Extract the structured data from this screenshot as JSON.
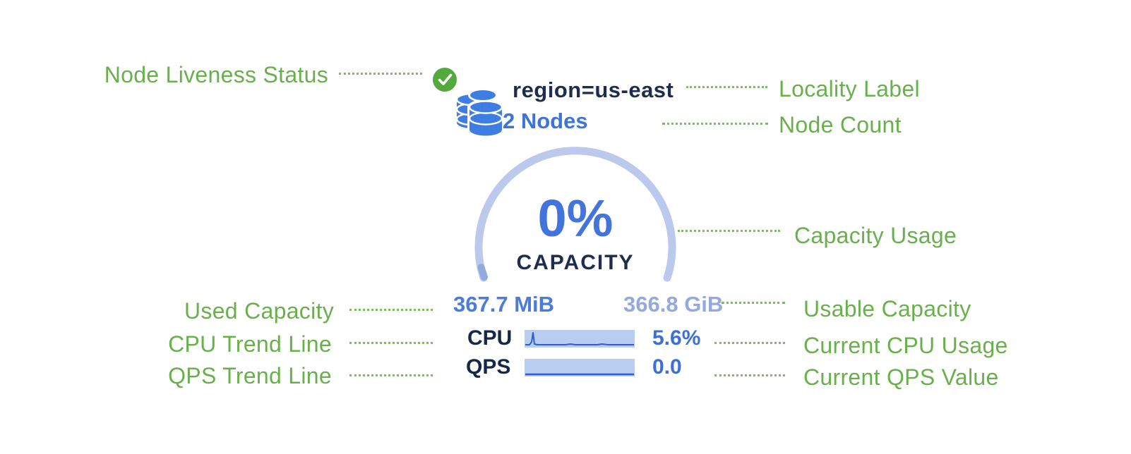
{
  "annotations": {
    "left": [
      {
        "label": "Node Liveness Status"
      },
      {
        "label": "Used Capacity"
      },
      {
        "label": "CPU Trend Line"
      },
      {
        "label": "QPS Trend Line"
      }
    ],
    "right": [
      {
        "label": "Locality Label"
      },
      {
        "label": "Node Count"
      },
      {
        "label": "Capacity Usage"
      },
      {
        "label": "Usable Capacity"
      },
      {
        "label": "Current CPU Usage"
      },
      {
        "label": "Current QPS Value"
      }
    ]
  },
  "node_card": {
    "liveness_icon": "check-circle",
    "node_icon": "database-stack",
    "locality": "region=us-east",
    "node_count": "2 Nodes",
    "capacity": {
      "percent": "0%",
      "label": "CAPACITY",
      "used": "367.7 MiB",
      "usable": "366.8 GiB"
    },
    "cpu": {
      "label": "CPU",
      "value": "5.6%",
      "trend": [
        [
          1,
          21
        ],
        [
          7,
          21
        ],
        [
          10,
          17
        ],
        [
          12,
          4
        ],
        [
          14,
          20
        ],
        [
          18,
          21
        ],
        [
          58,
          21
        ],
        [
          65,
          20
        ],
        [
          72,
          21
        ],
        [
          103,
          21
        ],
        [
          110,
          20
        ],
        [
          118,
          21
        ],
        [
          155,
          21
        ]
      ]
    },
    "qps": {
      "label": "QPS",
      "value": "0.0",
      "trend": [
        [
          1,
          22
        ],
        [
          155,
          22
        ]
      ]
    }
  },
  "colors": {
    "annotation_green": "#69b04d",
    "status_green": "#53a93e",
    "db_blue": "#3e7de2",
    "navy": "#1e2c4e",
    "value_blue": "#3d6fd7",
    "arc_blue": "#bac9ec",
    "arc_tip_blue": "#93abdc",
    "used_blue": "#4b7bdb",
    "usable_blue": "#94aade",
    "spark_fill": "#b9cdf0",
    "spark_line": "#2b5fd0"
  }
}
